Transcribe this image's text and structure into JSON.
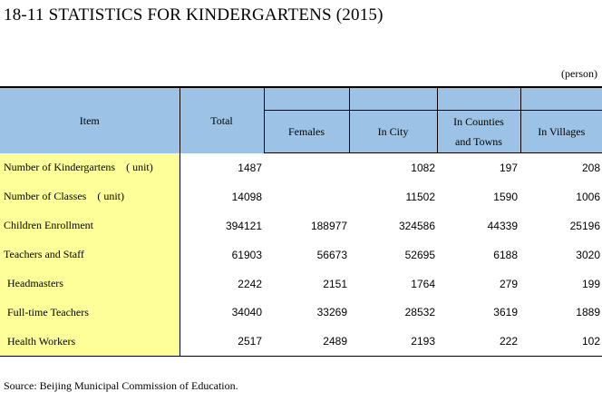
{
  "title": "18-11  STATISTICS FOR KINDERGARTENS (2015)",
  "unit_note": "(person)",
  "headers": {
    "item": "Item",
    "total": "Total",
    "females": "Females",
    "in_city": "In City",
    "in_counties_line1": "In Counties",
    "in_counties_line2": "and Towns",
    "in_villages": "In Villages"
  },
  "rows": [
    {
      "label": "Number of Kindergartens",
      "unit": "( unit)",
      "total": "1487",
      "females": "",
      "city": "1082",
      "counties": "197",
      "villages": "208"
    },
    {
      "label": "Number of Classes",
      "unit": "( unit)",
      "total": "14098",
      "females": "",
      "city": "11502",
      "counties": "1590",
      "villages": "1006"
    },
    {
      "label": "Children Enrollment",
      "unit": "",
      "total": "394121",
      "females": "188977",
      "city": "324586",
      "counties": "44339",
      "villages": "25196"
    },
    {
      "label": "Teachers and Staff",
      "unit": "",
      "total": "61903",
      "females": "56673",
      "city": "52695",
      "counties": "6188",
      "villages": "3020"
    },
    {
      "label": "Headmasters",
      "unit": "",
      "total": "2242",
      "females": "2151",
      "city": "1764",
      "counties": "279",
      "villages": "199"
    },
    {
      "label": "Full-time Teachers",
      "unit": "",
      "total": "34040",
      "females": "33269",
      "city": "28532",
      "counties": "3619",
      "villages": "1889"
    },
    {
      "label": "Health Workers",
      "unit": "",
      "total": "2517",
      "females": "2489",
      "city": "2193",
      "counties": "222",
      "villages": "102"
    }
  ],
  "source": "Source: Beijing Municipal Commission of Education."
}
